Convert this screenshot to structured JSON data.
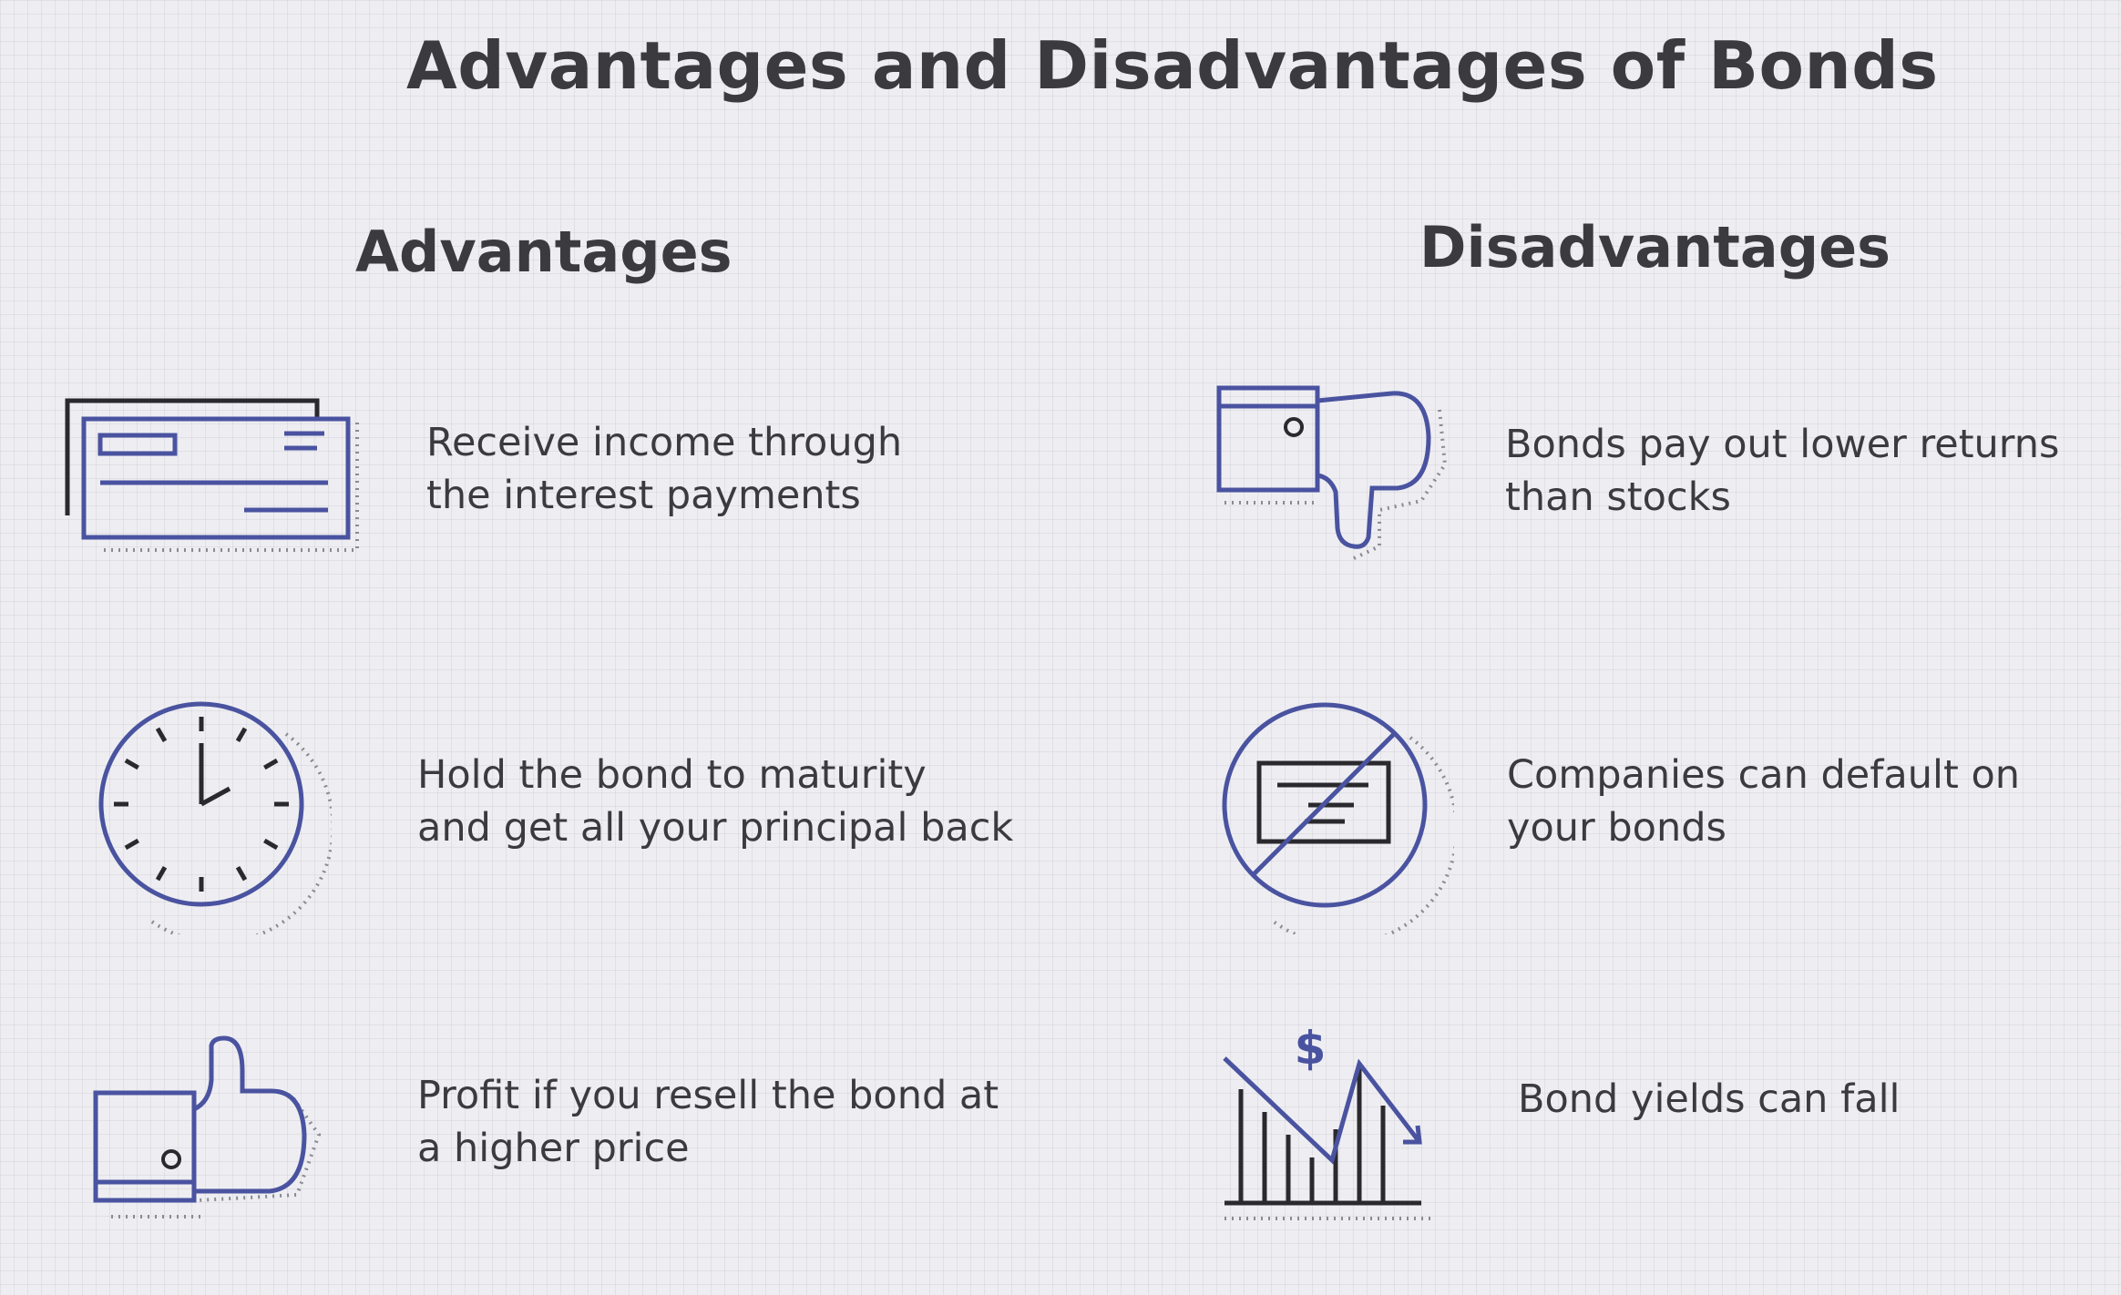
{
  "title": "Advantages and Disadvantages of Bonds",
  "advantages": {
    "heading": "Advantages",
    "items": [
      {
        "icon": "check-bond-icon",
        "line1": "Receive income through",
        "line2": "the interest payments"
      },
      {
        "icon": "clock-icon",
        "line1": "Hold the bond to maturity",
        "line2": "and get all your principal back"
      },
      {
        "icon": "thumbs-up-icon",
        "line1": "Profit if you resell the bond at",
        "line2": "a higher price"
      }
    ]
  },
  "disadvantages": {
    "heading": "Disadvantages",
    "items": [
      {
        "icon": "thumbs-down-icon",
        "line1": "Bonds pay out lower returns",
        "line2": "than stocks"
      },
      {
        "icon": "no-check-icon",
        "line1": "Companies can default on",
        "line2": "your bonds"
      },
      {
        "icon": "falling-chart-icon",
        "line1": "Bond yields can fall",
        "dollar": "$"
      }
    ]
  },
  "colors": {
    "accent": "#4a53a0",
    "text": "#3a3a3f",
    "background": "#eeeef2"
  }
}
